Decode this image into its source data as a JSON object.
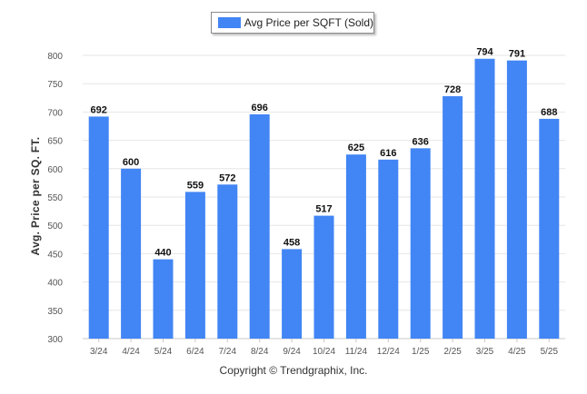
{
  "legend": {
    "label": "Avg Price per SQFT (Sold)"
  },
  "footer": {
    "copyright": "Copyright © Trendgraphix, Inc."
  },
  "colors": {
    "bar": "#4285f4",
    "grid": "#e6e6e6",
    "axis_text": "#555555",
    "value_text": "#111111"
  },
  "chart_data": {
    "type": "bar",
    "title": "",
    "xlabel": "",
    "ylabel": "Avg. Price per SQ. FT.",
    "categories": [
      "3/24",
      "4/24",
      "5/24",
      "6/24",
      "7/24",
      "8/24",
      "9/24",
      "10/24",
      "11/24",
      "12/24",
      "1/25",
      "2/25",
      "3/25",
      "4/25",
      "5/25"
    ],
    "series": [
      {
        "name": "Avg Price per SQFT (Sold)",
        "values": [
          692,
          600,
          440,
          559,
          572,
          696,
          458,
          517,
          625,
          616,
          636,
          728,
          794,
          791,
          688
        ]
      }
    ],
    "ylim": [
      300,
      800
    ],
    "yticks": [
      300,
      350,
      400,
      450,
      500,
      550,
      600,
      650,
      700,
      750,
      800
    ],
    "grid": true,
    "legend_position": "top-center",
    "data_labels": true
  }
}
